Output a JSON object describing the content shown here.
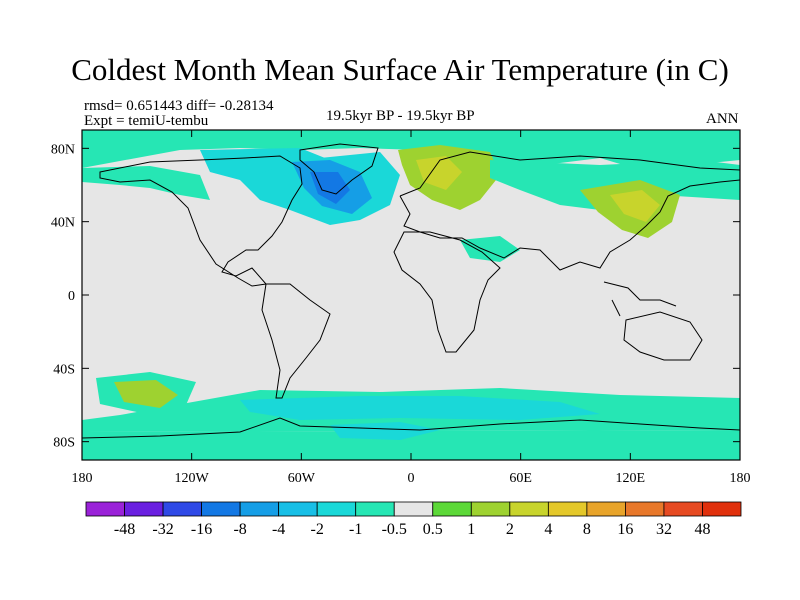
{
  "title": "Coldest Month Mean Surface Air Temperature (in C)",
  "stats": "rmsd= 0.651443  diff= -0.28134",
  "experiment": "Expt = temiU-tembu",
  "period": "19.5kyr BP - 19.5kyr BP",
  "season": "ANN",
  "chart_data": {
    "type": "heatmap",
    "projection": "cylindrical-equidistant",
    "lon_range": [
      -180,
      180
    ],
    "lat_range": [
      -90,
      90
    ],
    "x_ticks": [
      {
        "value": -180,
        "label": "180"
      },
      {
        "value": -120,
        "label": "120W"
      },
      {
        "value": -60,
        "label": "60W"
      },
      {
        "value": 0,
        "label": "0"
      },
      {
        "value": 60,
        "label": "60E"
      },
      {
        "value": 120,
        "label": "120E"
      },
      {
        "value": 180,
        "label": "180"
      }
    ],
    "y_ticks": [
      {
        "value": 80,
        "label": "80N"
      },
      {
        "value": 40,
        "label": "40N"
      },
      {
        "value": 0,
        "label": "0"
      },
      {
        "value": -40,
        "label": "40S"
      },
      {
        "value": -80,
        "label": "80S"
      }
    ],
    "colorbar": {
      "levels": [
        "-48",
        "-32",
        "-16",
        "-8",
        "-4",
        "-2",
        "-1",
        "-0.5",
        "0.5",
        "1",
        "2",
        "4",
        "8",
        "16",
        "32",
        "48"
      ],
      "colors": [
        "#9a22d8",
        "#6a1fe0",
        "#2f49e6",
        "#1378e4",
        "#159ee6",
        "#18bfe6",
        "#1ad8d8",
        "#26e6b4",
        "#e6e6e6",
        "#5cd838",
        "#9ed230",
        "#c8d42c",
        "#e4c82a",
        "#e8a42a",
        "#e8782a",
        "#e64a22",
        "#e0300c"
      ]
    },
    "regions": [
      {
        "name": "Arctic Ocean band",
        "value": "-1 to -0.5",
        "lon": [
          -180,
          180
        ],
        "lat": [
          74,
          84
        ]
      },
      {
        "name": "North Pacific high latitudes",
        "value": "-1 to -0.5",
        "lon": [
          -180,
          -110
        ],
        "lat": [
          56,
          74
        ]
      },
      {
        "name": "North Atlantic",
        "value": "-4 to -1",
        "lon": [
          -75,
          -15
        ],
        "lat": [
          40,
          75
        ]
      },
      {
        "name": "Labrador Sea / Greenland",
        "value": "-8 to -4",
        "lon": [
          -60,
          -30
        ],
        "lat": [
          48,
          68
        ]
      },
      {
        "name": "Scandinavia / NW Russia",
        "value": "1 to 4",
        "lon": [
          5,
          45
        ],
        "lat": [
          56,
          80
        ]
      },
      {
        "name": "Siberia",
        "value": "-1 to -0.5",
        "lon": [
          45,
          170
        ],
        "lat": [
          55,
          75
        ]
      },
      {
        "name": "East Asia",
        "value": "1 to 4",
        "lon": [
          95,
          140
        ],
        "lat": [
          38,
          60
        ]
      },
      {
        "name": "South Pacific",
        "value": "1 to 2",
        "lon": [
          -175,
          -145
        ],
        "lat": [
          -58,
          -46
        ]
      },
      {
        "name": "Southern Ocean",
        "value": "-2 to -0.5",
        "lon": [
          -150,
          155
        ],
        "lat": [
          -78,
          -55
        ]
      },
      {
        "name": "Antarctic margin",
        "value": "-1 to -0.5",
        "lon": [
          -180,
          180
        ],
        "lat": [
          -88,
          -78
        ]
      }
    ]
  }
}
